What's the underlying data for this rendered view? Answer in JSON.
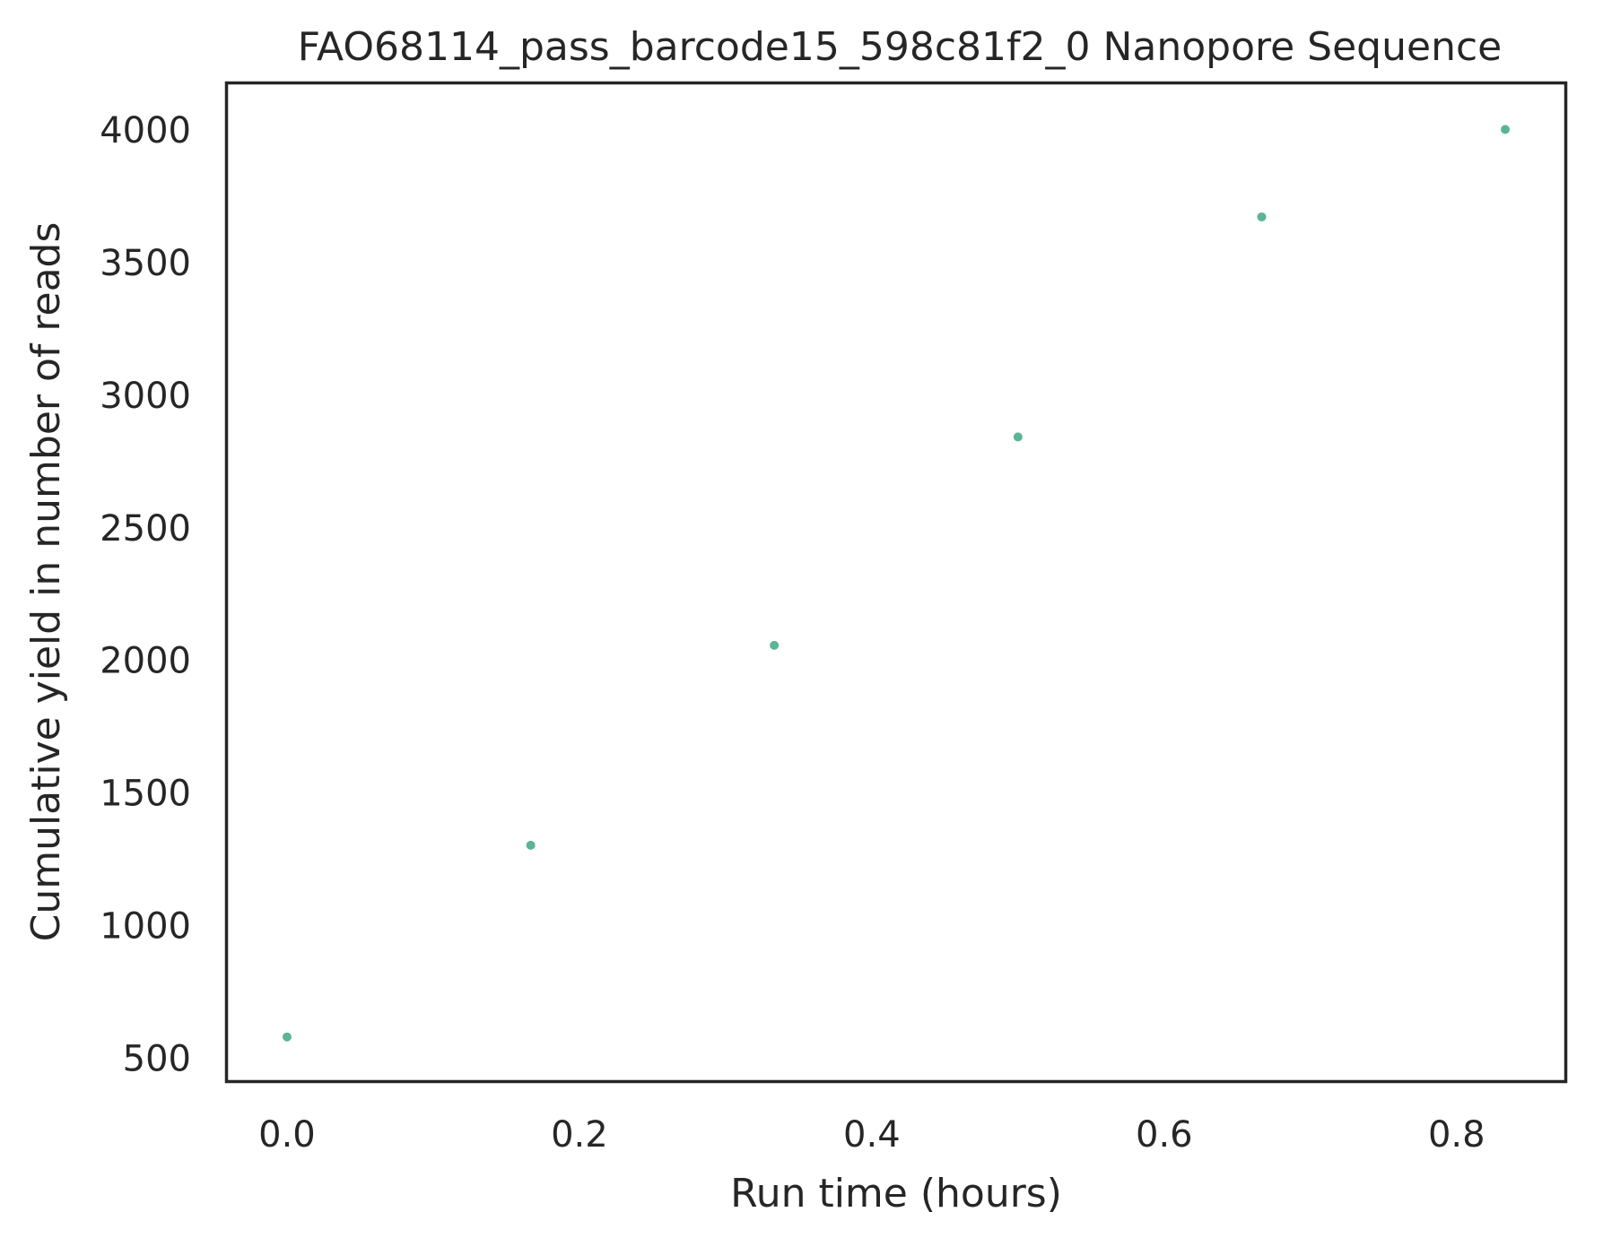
{
  "chart_data": {
    "type": "scatter",
    "title": "FAO68114_pass_barcode15_598c81f2_0 Nanopore Sequence",
    "xlabel": "Run time (hours)",
    "ylabel": "Cumulative yield in number of reads",
    "xlim": [
      -0.0417,
      0.875
    ],
    "ylim": [
      410,
      4180
    ],
    "x_ticks": [
      0.0,
      0.2,
      0.4,
      0.6,
      0.8
    ],
    "x_tick_labels": [
      "0.0",
      "0.2",
      "0.4",
      "0.6",
      "0.8"
    ],
    "y_ticks": [
      500,
      1000,
      1500,
      2000,
      2500,
      3000,
      3500,
      4000
    ],
    "y_tick_labels": [
      "500",
      "1000",
      "1500",
      "2000",
      "2500",
      "3000",
      "3500",
      "4000"
    ],
    "grid": false,
    "series": [
      {
        "color": "#5ab594",
        "points": [
          {
            "x": 0.0,
            "y": 580
          },
          {
            "x": 0.1667,
            "y": 1303
          },
          {
            "x": 0.3333,
            "y": 2057
          },
          {
            "x": 0.5,
            "y": 2843
          },
          {
            "x": 0.6667,
            "y": 3673
          },
          {
            "x": 0.8333,
            "y": 4003
          }
        ]
      }
    ]
  }
}
